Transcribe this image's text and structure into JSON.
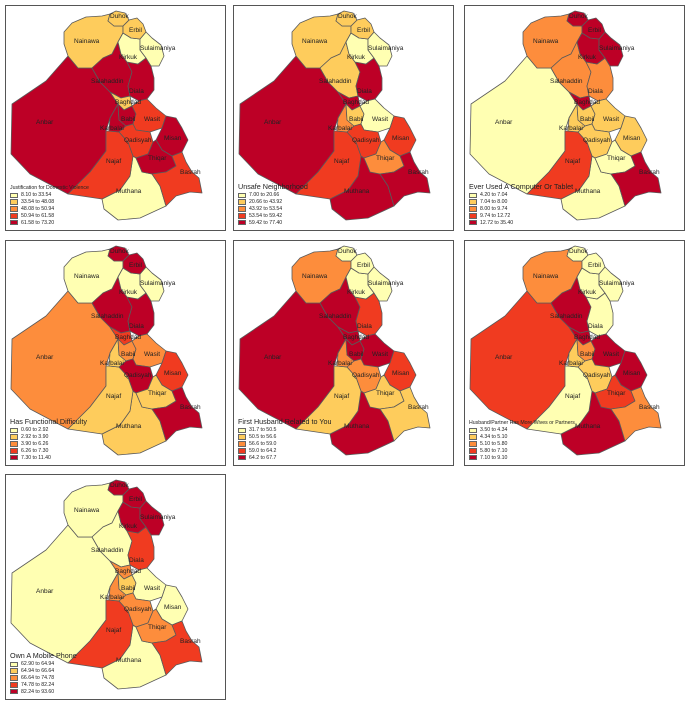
{
  "palette": [
    "#ffffb2",
    "#fecc5c",
    "#fd8d3c",
    "#f03b20",
    "#bd0026"
  ],
  "border_color": "#5a5a5a",
  "maps": [
    {
      "title": "Justification for Domestic Violence",
      "legend": [
        "8.10 to 33.54",
        "33.54 to 48.08",
        "48.08 to 50.94",
        "50.94 to 61.58",
        "61.58 to 73.20"
      ],
      "classes": {
        "Duhok": 1,
        "Erbil": 1,
        "Sulaimaniya": 0,
        "Nainawa": 1,
        "Kirkuk": 0,
        "Salahaddin": 4,
        "Diala": 4,
        "Anbar": 4,
        "Baghdad": 1,
        "Babil": 4,
        "Karbalai": 4,
        "Wasit": 3,
        "Najaf": 3,
        "Qadisyah": 3,
        "Misan": 4,
        "Thiqar": 4,
        "Muthana": 0,
        "Basrah": 3
      }
    },
    {
      "title": "Unsafe Neighborhood",
      "legend": [
        "7.00 to 20.66",
        "20.66 to 43.92",
        "43.92 to 53.54",
        "53.54 to 59.42",
        "59.42 to 77.40"
      ],
      "classes": {
        "Duhok": 1,
        "Erbil": 1,
        "Sulaimaniya": 0,
        "Nainawa": 1,
        "Kirkuk": 0,
        "Salahaddin": 1,
        "Diala": 4,
        "Anbar": 4,
        "Baghdad": 4,
        "Babil": 1,
        "Karbalai": 2,
        "Wasit": 0,
        "Najaf": 3,
        "Qadisyah": 3,
        "Misan": 3,
        "Thiqar": 2,
        "Muthana": 4,
        "Basrah": 4
      }
    },
    {
      "title": "Ever Used A Computer Or Tablet",
      "legend": [
        "4.20 to 7.04",
        "7.04 to 8.00",
        "8.00 to 9.74",
        "9.74 to 12.72",
        "12.72 to 35.40"
      ],
      "classes": {
        "Duhok": 4,
        "Erbil": 4,
        "Sulaimaniya": 4,
        "Nainawa": 2,
        "Kirkuk": 4,
        "Salahaddin": 2,
        "Diala": 2,
        "Anbar": 0,
        "Baghdad": 4,
        "Babil": 1,
        "Karbalai": 1,
        "Wasit": 1,
        "Najaf": 3,
        "Qadisyah": 1,
        "Misan": 1,
        "Thiqar": 0,
        "Muthana": 0,
        "Basrah": 4
      }
    },
    {
      "title": "Has Functional Difficulty",
      "legend": [
        "0.60 to 2.92",
        "2.92 to 3.90",
        "3.90 to 6.26",
        "6.26 to 7.30",
        "7.30 to 11.40"
      ],
      "classes": {
        "Duhok": 4,
        "Erbil": 4,
        "Sulaimaniya": 0,
        "Nainawa": 0,
        "Kirkuk": 0,
        "Salahaddin": 4,
        "Diala": 4,
        "Anbar": 2,
        "Baghdad": 3,
        "Babil": 2,
        "Karbalai": 1,
        "Wasit": 2,
        "Najaf": 1,
        "Qadisyah": 4,
        "Misan": 3,
        "Thiqar": 1,
        "Muthana": 1,
        "Basrah": 4
      }
    },
    {
      "title": "First Husband Related to You",
      "legend": [
        "31.7 to 50.5",
        "50.5 to 56.6",
        "56.6 to 59.0",
        "59.0 to 64.2",
        "64.2 to 67.7"
      ],
      "classes": {
        "Duhok": 0,
        "Erbil": 0,
        "Sulaimaniya": 0,
        "Nainawa": 2,
        "Kirkuk": 0,
        "Salahaddin": 4,
        "Diala": 3,
        "Anbar": 4,
        "Baghdad": 4,
        "Babil": 4,
        "Karbalai": 2,
        "Wasit": 4,
        "Najaf": 1,
        "Qadisyah": 2,
        "Misan": 3,
        "Thiqar": 1,
        "Muthana": 4,
        "Basrah": 1
      }
    },
    {
      "title": "Husband/Partner Has More Wives or Partners",
      "legend": [
        "3.50 to 4.34",
        "4.34 to 5.10",
        "5.10 to 5.80",
        "5.80 to 7.10",
        "7.10 to 9.10"
      ],
      "classes": {
        "Duhok": 0,
        "Erbil": 0,
        "Sulaimaniya": 0,
        "Nainawa": 2,
        "Kirkuk": 0,
        "Salahaddin": 4,
        "Diala": 0,
        "Anbar": 3,
        "Baghdad": 4,
        "Babil": 2,
        "Karbalai": 1,
        "Wasit": 4,
        "Najaf": 0,
        "Qadisyah": 1,
        "Misan": 4,
        "Thiqar": 3,
        "Muthana": 4,
        "Basrah": 2
      }
    },
    {
      "title": "Own A Mobile Phone",
      "legend": [
        "62.90 to 64.94",
        "64.94 to 66.64",
        "66.64 to 74.78",
        "74.78 to 82.24",
        "82.24 to 93.60"
      ],
      "classes": {
        "Duhok": 4,
        "Erbil": 4,
        "Sulaimaniya": 4,
        "Nainawa": 0,
        "Kirkuk": 4,
        "Salahaddin": 0,
        "Diala": 3,
        "Anbar": 0,
        "Baghdad": 2,
        "Babil": 1,
        "Karbalai": 2,
        "Wasit": 0,
        "Najaf": 3,
        "Qadisyah": 2,
        "Misan": 0,
        "Thiqar": 2,
        "Muthana": 0,
        "Basrah": 3
      }
    }
  ]
}
